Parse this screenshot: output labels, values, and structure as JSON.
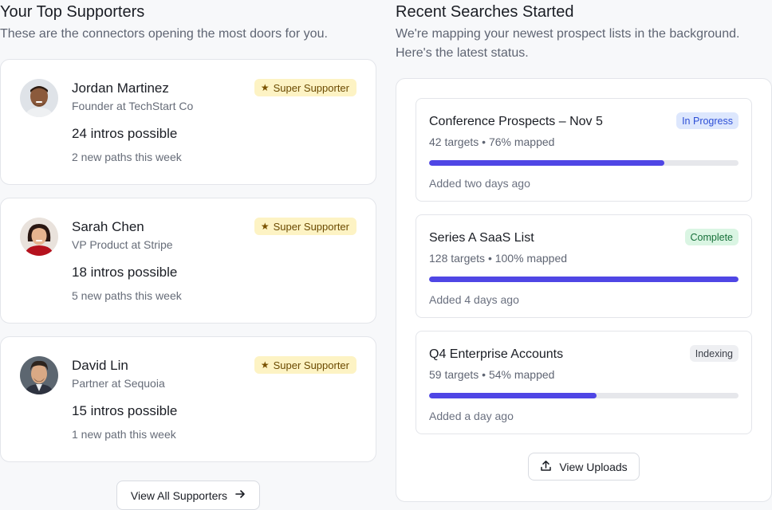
{
  "supporters": {
    "title": "Your Top Supporters",
    "subtitle": "These are the connectors opening the most doors for you.",
    "badge_label": "Super Supporter",
    "items": [
      {
        "name": "Jordan Martinez",
        "role": "Founder at TechStart Co",
        "intros": "24 intros possible",
        "paths": "2 new paths this week"
      },
      {
        "name": "Sarah Chen",
        "role": "VP Product at Stripe",
        "intros": "18 intros possible",
        "paths": "5 new paths this week"
      },
      {
        "name": "David Lin",
        "role": "Partner at Sequoia",
        "intros": "15 intros possible",
        "paths": "1 new path this week"
      }
    ],
    "view_all_label": "View All Supporters"
  },
  "searches": {
    "title": "Recent Searches Started",
    "subtitle_line1": "We're mapping your newest prospect lists in the background.",
    "subtitle_line2": "Here's the latest status.",
    "items": [
      {
        "title": "Conference Prospects – Nov 5",
        "meta": "42 targets • 76% mapped",
        "progress": 0.76,
        "added": "Added two days ago",
        "status": "In Progress"
      },
      {
        "title": "Series A SaaS List",
        "meta": "128 targets • 100% mapped",
        "progress": 1.0,
        "added": "Added 4 days ago",
        "status": "Complete"
      },
      {
        "title": "Q4 Enterprise Accounts",
        "meta": "59 targets • 54% mapped",
        "progress": 0.54,
        "added": "Added a day ago",
        "status": "Indexing"
      }
    ],
    "view_uploads_label": "View Uploads"
  },
  "colors": {
    "accent": "#4f46e5",
    "badge_super_bg": "#fdf3c4",
    "status_in_progress_bg": "#dde7fd",
    "status_in_progress_fg": "#2d4fd6",
    "status_complete_bg": "#daf5e3",
    "status_complete_fg": "#17703a",
    "status_indexing_bg": "#eeeff2",
    "status_indexing_fg": "#3b3f48"
  },
  "icons": {
    "badge": "star-icon",
    "view_all": "arrow-right-icon",
    "view_uploads": "upload-icon"
  }
}
